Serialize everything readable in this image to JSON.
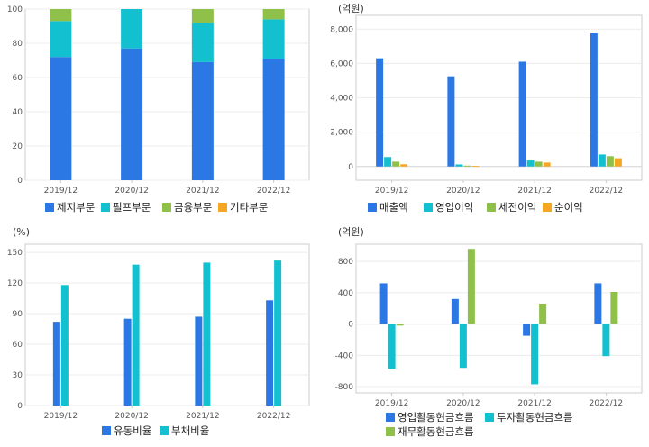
{
  "chart_data": [
    {
      "type": "bar",
      "stacked": true,
      "unit": "",
      "categories": [
        "2019/12",
        "2020/12",
        "2021/12",
        "2022/12"
      ],
      "ylim": [
        0,
        100
      ],
      "yticks": [
        "0",
        "20",
        "40",
        "60",
        "80",
        "100"
      ],
      "series": [
        {
          "name": "제지부문",
          "color": "#2b78e4",
          "values": [
            72,
            77,
            69,
            71
          ]
        },
        {
          "name": "펄프부문",
          "color": "#13c0d0",
          "values": [
            21,
            23,
            23,
            23
          ]
        },
        {
          "name": "금융부문",
          "color": "#8fc04a",
          "values": [
            7,
            0,
            8,
            6
          ]
        },
        {
          "name": "기타부문",
          "color": "#f5a623",
          "values": [
            0,
            0,
            0,
            0
          ]
        }
      ],
      "grid": true,
      "legend": "bottom"
    },
    {
      "type": "bar",
      "stacked": false,
      "unit": "(억원)",
      "categories": [
        "2019/12",
        "2020/12",
        "2021/12",
        "2022/12"
      ],
      "ylim": [
        -800,
        8800
      ],
      "yticks": [
        "0",
        "2,000",
        "4,000",
        "6,000",
        "8,000"
      ],
      "series": [
        {
          "name": "매출액",
          "color": "#2b78e4",
          "values": [
            6300,
            5250,
            6100,
            7750
          ]
        },
        {
          "name": "영업이익",
          "color": "#13c0d0",
          "values": [
            550,
            120,
            350,
            700
          ]
        },
        {
          "name": "세전이익",
          "color": "#8fc04a",
          "values": [
            280,
            50,
            280,
            600
          ]
        },
        {
          "name": "순이익",
          "color": "#f5a623",
          "values": [
            130,
            30,
            230,
            480
          ]
        }
      ],
      "grid": true,
      "legend": "bottom"
    },
    {
      "type": "bar",
      "stacked": false,
      "unit": "(%)",
      "categories": [
        "2019/12",
        "2020/12",
        "2021/12",
        "2022/12"
      ],
      "ylim": [
        0,
        158
      ],
      "yticks": [
        "0",
        "30",
        "60",
        "90",
        "120",
        "150"
      ],
      "series": [
        {
          "name": "유동비율",
          "color": "#2b78e4",
          "values": [
            82,
            85,
            87,
            103
          ]
        },
        {
          "name": "부채비율",
          "color": "#13c0d0",
          "values": [
            118,
            138,
            140,
            142
          ]
        }
      ],
      "grid": true,
      "legend": "bottom"
    },
    {
      "type": "bar",
      "stacked": false,
      "unit": "(억원)",
      "categories": [
        "2019/12",
        "2020/12",
        "2021/12",
        "2022/12"
      ],
      "ylim": [
        -880,
        1020
      ],
      "yticks": [
        "-800",
        "-400",
        "0",
        "400",
        "800"
      ],
      "series": [
        {
          "name": "영업활동현금흐름",
          "color": "#2b78e4",
          "values": [
            520,
            320,
            -150,
            520
          ]
        },
        {
          "name": "투자활동현금흐름",
          "color": "#13c0d0",
          "values": [
            -570,
            -560,
            -770,
            -410
          ]
        },
        {
          "name": "재무활동현금흐름",
          "color": "#8fc04a",
          "values": [
            -20,
            960,
            260,
            410
          ]
        }
      ],
      "grid": true,
      "legend": "bottom"
    }
  ]
}
